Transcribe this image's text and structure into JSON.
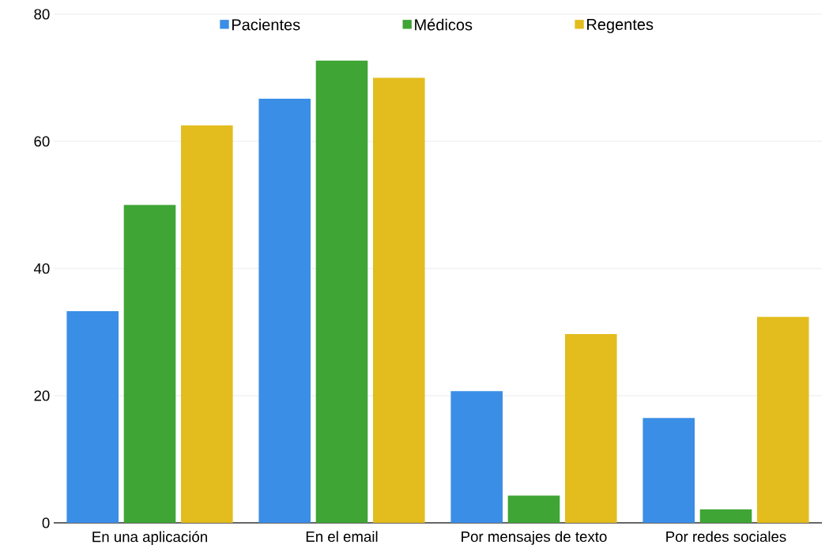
{
  "chart_data": {
    "type": "bar",
    "categories": [
      "En una aplicación",
      "En el email",
      "Por mensajes de texto",
      "Por redes sociales"
    ],
    "series": [
      {
        "name": "Pacientes",
        "color": "#3a8ee6",
        "values": [
          33.3,
          66.7,
          20.7,
          16.5
        ]
      },
      {
        "name": "Médicos",
        "color": "#3fa535",
        "values": [
          50,
          72.7,
          4.3,
          2.1
        ]
      },
      {
        "name": "Regentes",
        "color": "#e3bc1e",
        "values": [
          62.5,
          70,
          29.7,
          32.4
        ]
      }
    ],
    "ylim": [
      0,
      80
    ],
    "yticks": [
      0,
      20,
      40,
      60,
      80
    ],
    "grid": "y",
    "legend": "top"
  }
}
